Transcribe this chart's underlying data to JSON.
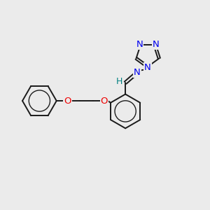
{
  "bg_color": "#ebebeb",
  "bond_color": "#1a1a1a",
  "atom_colors": {
    "N_blue": "#0000ee",
    "N_teal": "#008080",
    "O_red": "#ee0000",
    "H_teal": "#008080"
  },
  "figsize": [
    3.0,
    3.0
  ],
  "dpi": 100,
  "xlim": [
    0,
    10
  ],
  "ylim": [
    0,
    10
  ]
}
